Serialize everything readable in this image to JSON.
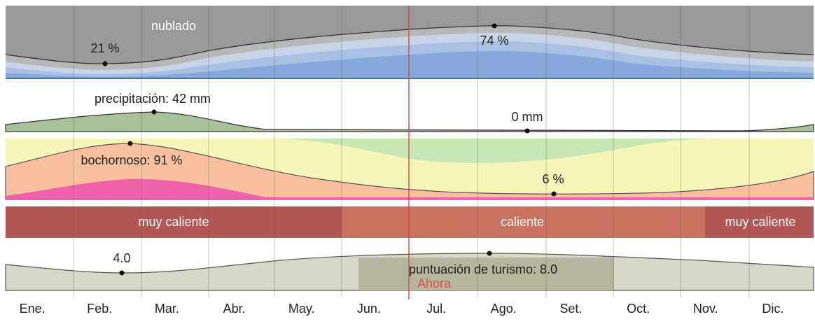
{
  "months": [
    "Ene.",
    "Feb.",
    "Mar.",
    "Abr.",
    "May.",
    "Jun.",
    "Jul.",
    "Ago.",
    "Set.",
    "Oct.",
    "Nov.",
    "Dic."
  ],
  "clouds": {
    "title": "nublado",
    "low": "21 %",
    "high": "74 %"
  },
  "precipitation": {
    "high": "precipitación: 42 mm",
    "low": "0 mm"
  },
  "humidity": {
    "high": "bochornoso: 91 %",
    "low": "6 %"
  },
  "temperature": [
    "muy caliente",
    "caliente",
    "muy caliente"
  ],
  "tourism": {
    "low": "4.0",
    "high": "puntuación de turismo: 8.0"
  },
  "now": "Ahora"
}
